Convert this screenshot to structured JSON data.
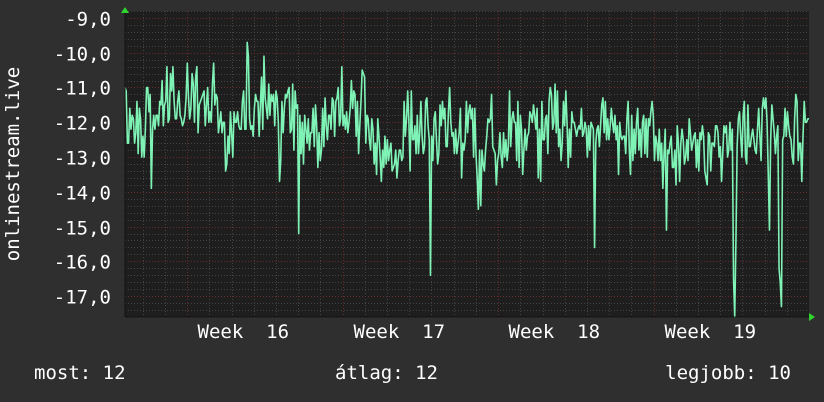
{
  "chart_data": {
    "type": "line",
    "title": "",
    "ylabel": "onlinestream.live",
    "xlabel": "",
    "ylim": [
      -17.6,
      -8.8
    ],
    "yticks": [
      -9,
      -10,
      -11,
      -12,
      -13,
      -14,
      -15,
      -16,
      -17
    ],
    "ytick_labels": [
      "-9,0",
      "-10,0",
      "-11,0",
      "-12,0",
      "-13,0",
      "-14,0",
      "-15,0",
      "-16,0",
      "-17,0"
    ],
    "x_range": [
      "Week 15.6",
      "Week 20.0"
    ],
    "xticks": [
      "Week 16",
      "Week 17",
      "Week 18",
      "Week 19"
    ],
    "grid": true,
    "legend": "none",
    "series": [
      {
        "color": "#7ff2b5",
        "values": [
          -11.0,
          -11.1,
          -12.6,
          -12.6,
          -11.6,
          -12.2,
          -11.8,
          -11.9,
          -12.6,
          -12.3,
          -11.4,
          -12.9,
          -11.6,
          -11.9,
          -13.0,
          -12.4,
          -13.0,
          -12.2,
          -11.0,
          -11.0,
          -11.7,
          -11.2,
          -13.9,
          -12.2,
          -11.8,
          -12.2,
          -11.8,
          -11.8,
          -12.1,
          -11.4,
          -11.5,
          -10.8,
          -12.1,
          -11.5,
          -11.4,
          -10.4,
          -12.0,
          -11.9,
          -10.6,
          -11.1,
          -10.4,
          -11.4,
          -11.9,
          -11.9,
          -11.4,
          -11.1,
          -11.8,
          -11.9,
          -12.1,
          -12.0,
          -11.8,
          -11.3,
          -10.3,
          -11.3,
          -11.9,
          -11.6,
          -10.6,
          -10.9,
          -12.0,
          -10.7,
          -10.4,
          -12.3,
          -11.5,
          -11.4,
          -11.3,
          -11.2,
          -11.1,
          -12.1,
          -11.5,
          -11.0,
          -12.0,
          -11.7,
          -12.0,
          -10.9,
          -10.3,
          -11.5,
          -11.2,
          -11.3,
          -12.3,
          -12.0,
          -11.7,
          -12.3,
          -12.0,
          -12.0,
          -13.4,
          -13.2,
          -12.4,
          -12.9,
          -11.7,
          -12.3,
          -13.0,
          -11.7,
          -12.0,
          -12.0,
          -11.7,
          -12.1,
          -12.2,
          -12.2,
          -11.4,
          -11.1,
          -12.2,
          -12.2,
          -9.7,
          -10.1,
          -11.9,
          -12.2,
          -12.1,
          -12.4,
          -11.6,
          -11.2,
          -11.4,
          -11.4,
          -12.4,
          -11.5,
          -10.7,
          -12.2,
          -10.1,
          -11.3,
          -11.6,
          -11.9,
          -10.9,
          -11.8,
          -11.2,
          -11.4,
          -11.2,
          -12.1,
          -11.1,
          -11.3,
          -12.0,
          -13.7,
          -13.1,
          -11.4,
          -12.3,
          -11.6,
          -11.2,
          -11.3,
          -11.1,
          -11.0,
          -12.3,
          -12.2,
          -10.9,
          -12.8,
          -11.1,
          -11.6,
          -11.5,
          -15.2,
          -11.8,
          -12.9,
          -12.0,
          -13.2,
          -11.8,
          -12.2,
          -12.6,
          -11.9,
          -12.8,
          -12.3,
          -12.3,
          -11.6,
          -12.7,
          -11.5,
          -12.1,
          -13.3,
          -12.3,
          -13.1,
          -12.8,
          -11.6,
          -12.7,
          -11.3,
          -12.1,
          -12.5,
          -11.8,
          -11.8,
          -12.2,
          -11.3,
          -11.4,
          -12.4,
          -11.4,
          -11.3,
          -11.0,
          -12.1,
          -11.9,
          -10.4,
          -12.1,
          -11.8,
          -12.2,
          -11.7,
          -12.3,
          -12.0,
          -11.6,
          -10.8,
          -11.6,
          -11.1,
          -11.2,
          -12.4,
          -11.4,
          -12.9,
          -12.1,
          -11.4,
          -10.5,
          -10.6,
          -10.7,
          -12.6,
          -11.8,
          -11.9,
          -12.5,
          -12.8,
          -11.9,
          -12.2,
          -13.2,
          -12.6,
          -13.5,
          -11.9,
          -12.4,
          -13.0,
          -13.7,
          -12.8,
          -13.3,
          -12.4,
          -13.2,
          -12.5,
          -13.1,
          -12.8,
          -12.6,
          -13.4,
          -13.3,
          -13.2,
          -12.8,
          -13.6,
          -13.1,
          -12.8,
          -12.8,
          -13.1,
          -13.0,
          -11.4,
          -12.4,
          -11.9,
          -11.1,
          -12.0,
          -13.4,
          -11.1,
          -12.5,
          -12.5,
          -12.1,
          -12.9,
          -11.8,
          -12.9,
          -12.3,
          -11.4,
          -12.4,
          -12.9,
          -12.7,
          -11.4,
          -11.3,
          -12.1,
          -12.5,
          -16.4,
          -12.4,
          -13.1,
          -11.9,
          -11.7,
          -12.5,
          -13.2,
          -12.9,
          -11.5,
          -12.1,
          -11.4,
          -11.9,
          -11.6,
          -12.7,
          -12.7,
          -11.7,
          -11.0,
          -12.0,
          -12.4,
          -12.3,
          -12.9,
          -12.2,
          -12.9,
          -12.6,
          -12.3,
          -11.6,
          -13.6,
          -12.6,
          -12.8,
          -12.5,
          -11.4,
          -12.3,
          -11.7,
          -11.5,
          -11.9,
          -11.6,
          -13.0,
          -11.6,
          -12.9,
          -13.6,
          -14.5,
          -12.8,
          -14.4,
          -12.8,
          -13.2,
          -13.4,
          -12.8,
          -12.4,
          -11.9,
          -12.0,
          -11.9,
          -11.2,
          -12.7,
          -12.8,
          -12.9,
          -13.8,
          -13.1,
          -12.9,
          -12.3,
          -13.0,
          -13.3,
          -12.3,
          -13.0,
          -12.5,
          -13.1,
          -12.7,
          -11.1,
          -12.7,
          -11.9,
          -11.7,
          -12.0,
          -12.0,
          -13.1,
          -11.4,
          -13.3,
          -11.8,
          -12.2,
          -13.5,
          -12.8,
          -12.2,
          -12.8,
          -12.4,
          -12.3,
          -11.7,
          -11.8,
          -12.0,
          -11.5,
          -11.8,
          -12.2,
          -11.6,
          -13.6,
          -12.2,
          -13.7,
          -11.4,
          -12.5,
          -12.5,
          -11.9,
          -11.8,
          -12.9,
          -11.4,
          -11.0,
          -11.2,
          -12.2,
          -12.0,
          -10.9,
          -12.3,
          -11.1,
          -12.7,
          -12.2,
          -13.1,
          -12.6,
          -11.4,
          -12.1,
          -11.1,
          -12.0,
          -13.3,
          -12.2,
          -13.0,
          -11.7,
          -12.0,
          -12.0,
          -12.2,
          -12.4,
          -12.2,
          -12.1,
          -12.2,
          -11.6,
          -12.4,
          -12.3,
          -12.0,
          -12.2,
          -13.0,
          -12.1,
          -12.8,
          -12.0,
          -12.1,
          -12.2,
          -15.6,
          -12.6,
          -12.2,
          -12.1,
          -12.7,
          -12.1,
          -11.5,
          -11.3,
          -12.3,
          -11.4,
          -12.5,
          -11.9,
          -12.5,
          -12.1,
          -11.6,
          -12.0,
          -12.3,
          -11.8,
          -12.5,
          -12.1,
          -13.5,
          -12.0,
          -12.4,
          -12.5,
          -12.4,
          -12.4,
          -12.9,
          -11.9,
          -11.4,
          -12.8,
          -13.5,
          -11.8,
          -13.1,
          -12.2,
          -12.9,
          -12.0,
          -11.6,
          -12.8,
          -12.2,
          -13.0,
          -12.0,
          -11.8,
          -12.9,
          -11.9,
          -13.0,
          -11.9,
          -12.1,
          -11.7,
          -11.4,
          -11.8,
          -13.1,
          -12.4,
          -12.6,
          -13.1,
          -12.2,
          -13.1,
          -12.6,
          -13.9,
          -12.9,
          -12.2,
          -15.1,
          -12.8,
          -12.9,
          -12.6,
          -12.4,
          -13.3,
          -13.3,
          -12.8,
          -13.8,
          -12.1,
          -12.6,
          -13.7,
          -12.6,
          -12.2,
          -12.5,
          -13.2,
          -13.0,
          -12.5,
          -13.1,
          -11.9,
          -12.3,
          -12.8,
          -12.6,
          -12.4,
          -12.3,
          -13.3,
          -12.5,
          -13.4,
          -12.3,
          -12.5,
          -12.1,
          -12.4,
          -13.4,
          -13.6,
          -13.8,
          -12.3,
          -12.4,
          -13.4,
          -12.6,
          -12.6,
          -12.7,
          -12.1,
          -12.1,
          -12.3,
          -13.0,
          -12.7,
          -13.7,
          -12.9,
          -12.1,
          -12.3,
          -12.1,
          -13.0,
          -12.8,
          -12.0,
          -12.8,
          -12.2,
          -16.5,
          -17.6,
          -15.4,
          -12.7,
          -11.9,
          -11.7,
          -12.4,
          -13.0,
          -11.8,
          -11.4,
          -13.0,
          -13.2,
          -11.5,
          -12.7,
          -12.7,
          -12.4,
          -12.2,
          -12.5,
          -12.8,
          -12.9,
          -12.2,
          -11.6,
          -12.4,
          -13.1,
          -11.6,
          -11.3,
          -11.6,
          -11.3,
          -12.0,
          -13.5,
          -15.1,
          -12.5,
          -11.5,
          -11.9,
          -12.3,
          -12.9,
          -12.4,
          -12.1,
          -16.2,
          -16.6,
          -17.3,
          -12.5,
          -12.4,
          -11.6,
          -12.4,
          -11.7,
          -12.1,
          -12.4,
          -12.5,
          -13.0,
          -13.2,
          -11.9,
          -11.2,
          -11.4,
          -13.1,
          -12.6,
          -12.6,
          -13.7,
          -12.4,
          -11.4,
          -12.0,
          -12.0,
          -11.9,
          -11.9
        ]
      }
    ]
  },
  "stats": {
    "now_label": "most:",
    "now_value": "12",
    "avg_label": "átlag:",
    "avg_value": "12",
    "max_label": "legjobb:",
    "max_value": "10"
  },
  "colors": {
    "background": "#2f2f2f",
    "plot_background": "#1e1e1e",
    "grid_major": "#6a2b2b",
    "grid_minor": "#444444",
    "axis_arrow": "#2fd52f",
    "line": "#7ff2b5",
    "text": "#ffffff"
  }
}
